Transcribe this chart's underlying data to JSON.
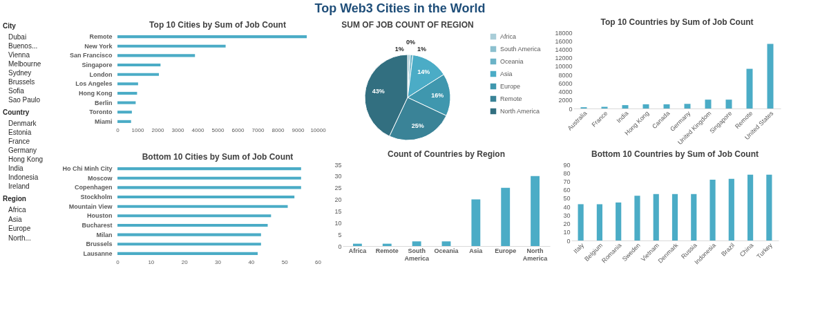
{
  "chart_data": [
    {
      "type": "other",
      "title": "Top Web3 Cities in the World"
    },
    {
      "type": "other",
      "title": "City",
      "annotations": [
        "Dubai",
        "Buenos...",
        "Vienna",
        "Melbourne",
        "Sydney",
        "Brussels",
        "Sofia",
        "Sao Paulo"
      ]
    },
    {
      "type": "other",
      "title": "Country",
      "annotations": [
        "Denmark",
        "Estonia",
        "France",
        "Germany",
        "Hong Kong",
        "India",
        "Indonesia",
        "Ireland"
      ]
    },
    {
      "type": "other",
      "title": "Region",
      "annotations": [
        "Africa",
        "Asia",
        "Europe",
        "North..."
      ]
    },
    {
      "type": "bar",
      "orientation": "horizontal",
      "title": "Top 10 Cities by Sum of Job Count",
      "categories": [
        "Remote",
        "New York",
        "San Francisco",
        "Singapore",
        "London",
        "Los Angeles",
        "Hong Kong",
        "Berlin",
        "Toronto",
        "Miami"
      ],
      "values": [
        9450,
        5400,
        3870,
        2150,
        2070,
        1030,
        980,
        910,
        720,
        680
      ],
      "color": "#4bacc6",
      "xlim": [
        0,
        10000
      ],
      "xticks": [
        0,
        1000,
        2000,
        3000,
        4000,
        5000,
        6000,
        7000,
        8000,
        9000,
        10000
      ]
    },
    {
      "type": "pie",
      "title": "SUM OF JOB COUNT OF REGION",
      "categories": [
        "Africa",
        "South America",
        "Oceania",
        "Asia",
        "Europe",
        "Remote",
        "North America"
      ],
      "values": [
        1,
        0,
        1,
        14,
        16,
        25,
        43
      ],
      "value_labels": [
        "1%",
        "0%",
        "1%",
        "14%",
        "16%",
        "25%",
        "43%"
      ],
      "colors": [
        "#a9cdd8",
        "#8cc0cf",
        "#6bb3c7",
        "#4bacc6",
        "#3f97ae",
        "#3a8397",
        "#326f80"
      ],
      "legend": "right"
    },
    {
      "type": "bar",
      "title": "Top 10 Countries by Sum of Job Count",
      "categories": [
        "Australia",
        "France",
        "India",
        "Hong Kong",
        "Canada",
        "Germany",
        "United Kingdom",
        "Singapore",
        "Remote",
        "United States"
      ],
      "values": [
        300,
        400,
        800,
        1000,
        1000,
        1100,
        2100,
        2100,
        9400,
        15300
      ],
      "color": "#4bacc6",
      "ylim": [
        0,
        18000
      ],
      "yticks": [
        0,
        2000,
        4000,
        6000,
        8000,
        10000,
        12000,
        14000,
        16000,
        18000
      ]
    },
    {
      "type": "bar",
      "orientation": "horizontal",
      "title": "Bottom 10 Cities by Sum of Job Count",
      "categories": [
        "Ho Chi Minh City",
        "Moscow",
        "Copenhagen",
        "Stockholm",
        "Mountain View",
        "Houston",
        "Bucharest",
        "Milan",
        "Brussels",
        "Lausanne"
      ],
      "values": [
        55,
        55,
        55,
        53,
        51,
        46,
        45,
        43,
        43,
        42
      ],
      "color": "#4bacc6",
      "xlim": [
        0,
        60
      ],
      "xticks": [
        0,
        10,
        20,
        30,
        40,
        50,
        60
      ]
    },
    {
      "type": "bar",
      "title": "Count of Countries by Region",
      "categories": [
        "Africa",
        "Remote",
        "South America",
        "Oceania",
        "Asia",
        "Europe",
        "North America"
      ],
      "values": [
        1,
        1,
        2,
        2,
        20,
        25,
        30
      ],
      "color": "#4bacc6",
      "ylim": [
        0,
        35
      ],
      "yticks": [
        0,
        5,
        10,
        15,
        20,
        25,
        30,
        35
      ]
    },
    {
      "type": "bar",
      "title": "Bottom 10 Countries by Sum of Job Count",
      "categories": [
        "Italy",
        "Belgium",
        "Romania",
        "Sweden",
        "Vietnam",
        "Denmark",
        "Russia",
        "Indonesia",
        "Brazil",
        "China",
        "Turkey"
      ],
      "values": [
        43,
        43,
        45,
        53,
        55,
        55,
        55,
        72,
        73,
        78,
        78
      ],
      "color": "#4bacc6",
      "ylim": [
        0,
        90
      ],
      "yticks": [
        0,
        10,
        20,
        30,
        40,
        50,
        60,
        70,
        80,
        90
      ]
    }
  ]
}
